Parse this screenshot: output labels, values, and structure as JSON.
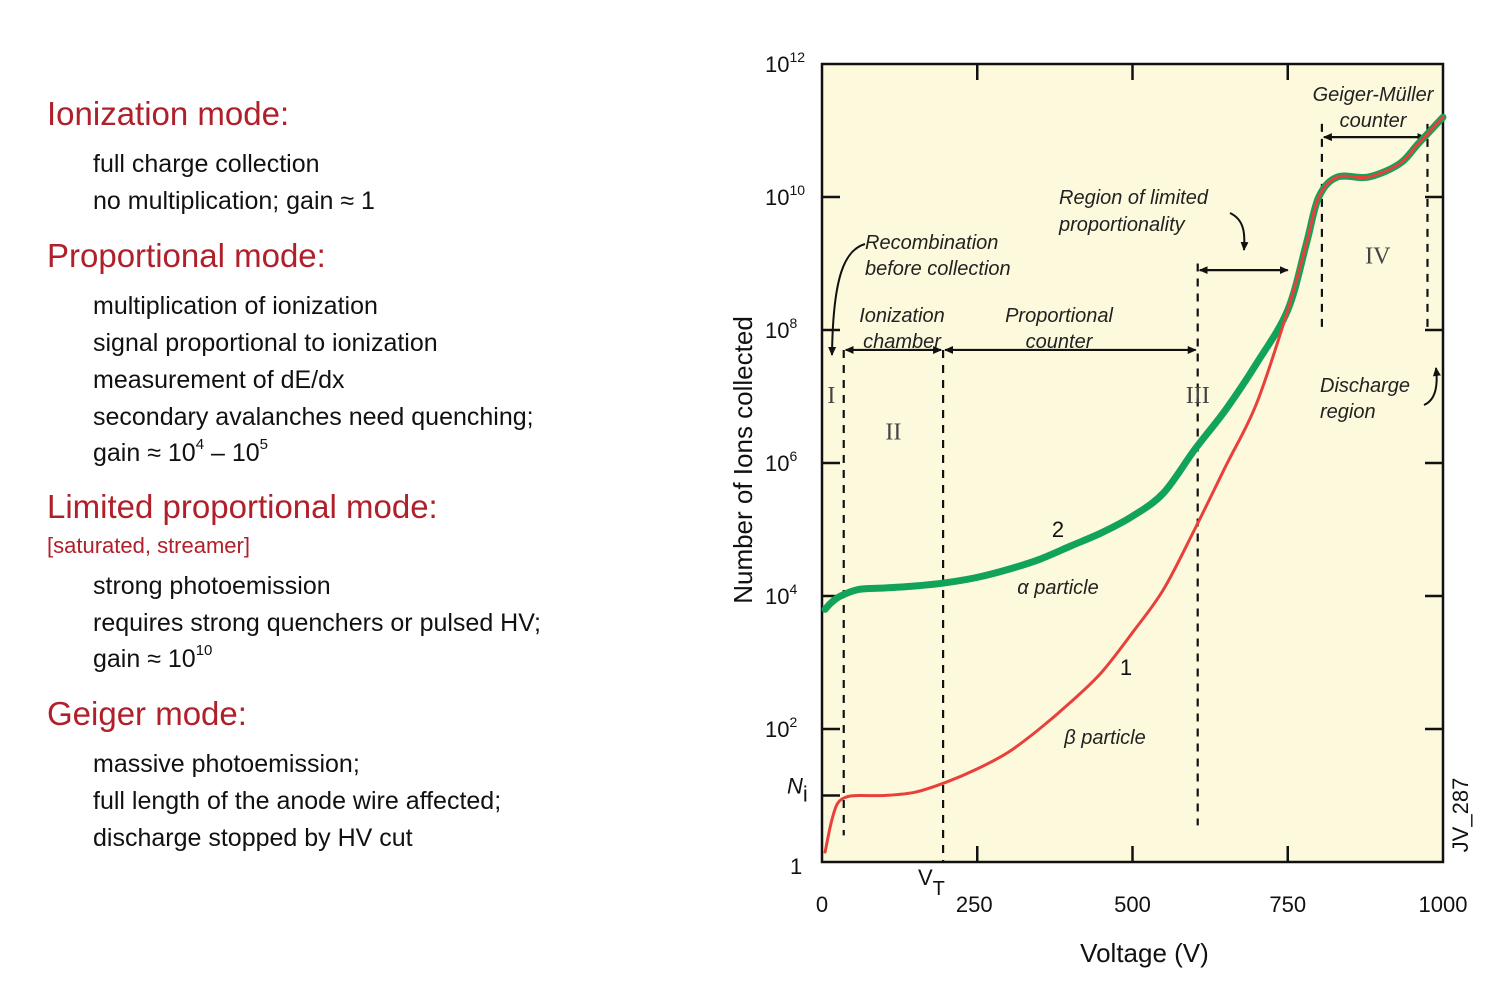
{
  "modes": [
    {
      "title": "Ionization mode:",
      "subtitle": "",
      "items": [
        "full charge collection",
        "no multiplication; gain ≈ 1"
      ]
    },
    {
      "title": "Proportional mode:",
      "subtitle": "",
      "items": [
        "multiplication of ionization",
        "signal proportional to ionization",
        "measurement of dE/dx",
        "secondary avalanches need quenching;",
        "gain ≈ 10^4 – 10^5"
      ]
    },
    {
      "title": "Limited proportional mode:",
      "subtitle": "[saturated, streamer]",
      "items": [
        "strong photoemission",
        "requires strong quenchers or pulsed HV;",
        "gain ≈ 10^10"
      ]
    },
    {
      "title": "Geiger mode:",
      "subtitle": "",
      "items": [
        "massive photoemission;",
        "full length of the anode wire affected;",
        "discharge stopped by HV cut"
      ]
    }
  ],
  "chart_data": {
    "type": "line",
    "xlabel": "Voltage (V)",
    "ylabel": "Number of Ions collected",
    "xlim": [
      0,
      1000
    ],
    "ylim_log10": [
      0,
      12
    ],
    "y_scale": "log",
    "x_ticks": [
      0,
      250,
      500,
      750,
      1000
    ],
    "y_ticks": [
      {
        "value": 1,
        "label": "1"
      },
      {
        "value": 100,
        "label": "10",
        "exp": "2"
      },
      {
        "value": 10000,
        "label": "10",
        "exp": "4"
      },
      {
        "value": 1000000,
        "label": "10",
        "exp": "6"
      },
      {
        "value": 100000000,
        "label": "10",
        "exp": "8"
      },
      {
        "value": 10000000000,
        "label": "10",
        "exp": "10"
      },
      {
        "value": 1000000000000,
        "label": "10",
        "exp": "12"
      }
    ],
    "ni_label": {
      "text": "N",
      "sub": "i",
      "value": 10
    },
    "vt_label": {
      "text": "V",
      "sub": "T",
      "value": 190
    },
    "background": "#fdf9dc",
    "series": [
      {
        "name": "α particle",
        "number": "2",
        "color": "#12a35a",
        "points": [
          [
            5,
            3.8
          ],
          [
            15,
            3.9
          ],
          [
            30,
            4.0
          ],
          [
            60,
            4.1
          ],
          [
            100,
            4.12
          ],
          [
            150,
            4.15
          ],
          [
            200,
            4.2
          ],
          [
            250,
            4.28
          ],
          [
            300,
            4.4
          ],
          [
            350,
            4.55
          ],
          [
            400,
            4.75
          ],
          [
            450,
            4.95
          ],
          [
            500,
            5.2
          ],
          [
            550,
            5.55
          ],
          [
            600,
            6.2
          ],
          [
            650,
            6.8
          ],
          [
            700,
            7.5
          ],
          [
            750,
            8.3
          ],
          [
            780,
            9.3
          ],
          [
            800,
            10.0
          ],
          [
            830,
            10.3
          ],
          [
            880,
            10.3
          ],
          [
            930,
            10.5
          ],
          [
            960,
            10.8
          ],
          [
            1000,
            11.2
          ]
        ]
      },
      {
        "name": "β particle",
        "number": "1",
        "color": "#e8403a",
        "points": [
          [
            5,
            0.15
          ],
          [
            15,
            0.6
          ],
          [
            25,
            0.88
          ],
          [
            40,
            0.98
          ],
          [
            60,
            1.0
          ],
          [
            100,
            1.0
          ],
          [
            150,
            1.05
          ],
          [
            200,
            1.2
          ],
          [
            250,
            1.4
          ],
          [
            300,
            1.65
          ],
          [
            350,
            2.0
          ],
          [
            400,
            2.4
          ],
          [
            450,
            2.85
          ],
          [
            500,
            3.45
          ],
          [
            550,
            4.1
          ],
          [
            600,
            5.0
          ],
          [
            650,
            5.95
          ],
          [
            700,
            6.9
          ],
          [
            750,
            8.3
          ],
          [
            780,
            9.3
          ],
          [
            800,
            10.0
          ],
          [
            830,
            10.3
          ],
          [
            880,
            10.3
          ],
          [
            930,
            10.5
          ],
          [
            960,
            10.8
          ],
          [
            1000,
            11.2
          ]
        ]
      }
    ],
    "region_lines_x": [
      35,
      195,
      605,
      805,
      975
    ],
    "regions": [
      "I",
      "II",
      "III",
      "IV"
    ],
    "annotations": [
      "Recombination",
      "before collection",
      "Ionization",
      "chamber",
      "Proportional",
      "counter",
      "Region of limited",
      "proportionality",
      "Geiger-Müller",
      "counter",
      "Discharge",
      "region"
    ],
    "figure_id": "JV_287"
  }
}
